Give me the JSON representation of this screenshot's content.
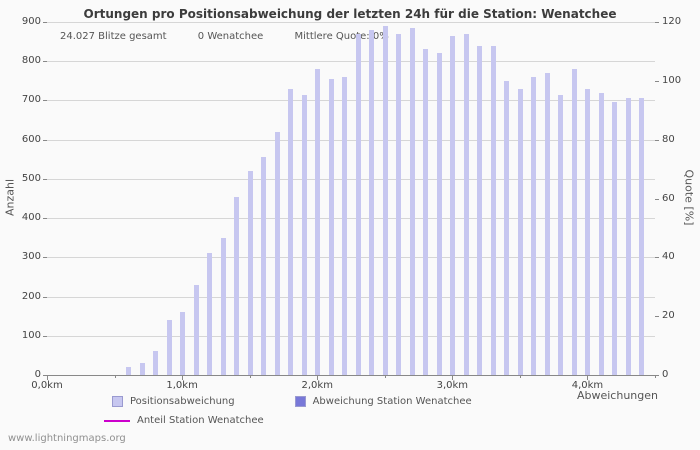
{
  "title": "Ortungen pro Positionsabweichung der letzten 24h für die Station: Wenatchee",
  "stats": {
    "total": "24.027 Blitze gesamt",
    "station": "0 Wenatchee",
    "quote": "Mittlere Quote: 0%"
  },
  "axes": {
    "left_label": "Anzahl",
    "right_label": "Quote [%]",
    "x_label": "Abweichungen"
  },
  "legend": {
    "items": [
      {
        "label": "Positionsabweichung",
        "type": "bar",
        "color": "#c7c7f0"
      },
      {
        "label": "Abweichung Station Wenatchee",
        "type": "bar",
        "color": "#7878d8"
      },
      {
        "label": "Anteil Station Wenatchee",
        "type": "line",
        "color": "#cc00cc"
      }
    ]
  },
  "watermark": "www.lightningmaps.org",
  "chart_data": {
    "type": "bar",
    "title": "Ortungen pro Positionsabweichung der letzten 24h für die Station: Wenatchee",
    "xlabel": "Abweichungen",
    "ylabel_left": "Anzahl",
    "ylabel_right": "Quote [%]",
    "x_unit": "km",
    "xlim": [
      0,
      4.5
    ],
    "ylim": [
      0,
      900
    ],
    "y_tick_step": 100,
    "y2lim": [
      0,
      120
    ],
    "y2_tick_step": 20,
    "grid": "horizontal",
    "legend_position": "bottom",
    "x_ticks": [
      {
        "pos": 0,
        "label": "0,0km"
      },
      {
        "pos": 1,
        "label": "1,0km"
      },
      {
        "pos": 2,
        "label": "2,0km"
      },
      {
        "pos": 3,
        "label": "3,0km"
      },
      {
        "pos": 4,
        "label": "4,0km"
      }
    ],
    "series": [
      {
        "name": "Positionsabweichung",
        "color": "#c7c7f0",
        "x": [
          0.6,
          0.7,
          0.8,
          0.9,
          1.0,
          1.1,
          1.2,
          1.3,
          1.4,
          1.5,
          1.6,
          1.7,
          1.8,
          1.9,
          2.0,
          2.1,
          2.2,
          2.3,
          2.4,
          2.5,
          2.6,
          2.7,
          2.8,
          2.9,
          3.0,
          3.1,
          3.2,
          3.3,
          3.4,
          3.5,
          3.6,
          3.7,
          3.8,
          3.9,
          4.0,
          4.1,
          4.2,
          4.3,
          4.4
        ],
        "values": [
          20,
          30,
          60,
          140,
          160,
          230,
          310,
          350,
          455,
          520,
          555,
          620,
          730,
          715,
          780,
          755,
          760,
          870,
          880,
          890,
          870,
          885,
          830,
          820,
          865,
          870,
          840,
          840,
          750,
          730,
          760,
          770,
          715,
          780,
          730,
          720,
          695,
          705,
          705
        ]
      },
      {
        "name": "Abweichung Station Wenatchee",
        "color": "#7878d8",
        "x": [],
        "values": []
      },
      {
        "name": "Anteil Station Wenatchee",
        "type": "line",
        "color": "#cc00cc",
        "x": [],
        "values": []
      }
    ]
  }
}
